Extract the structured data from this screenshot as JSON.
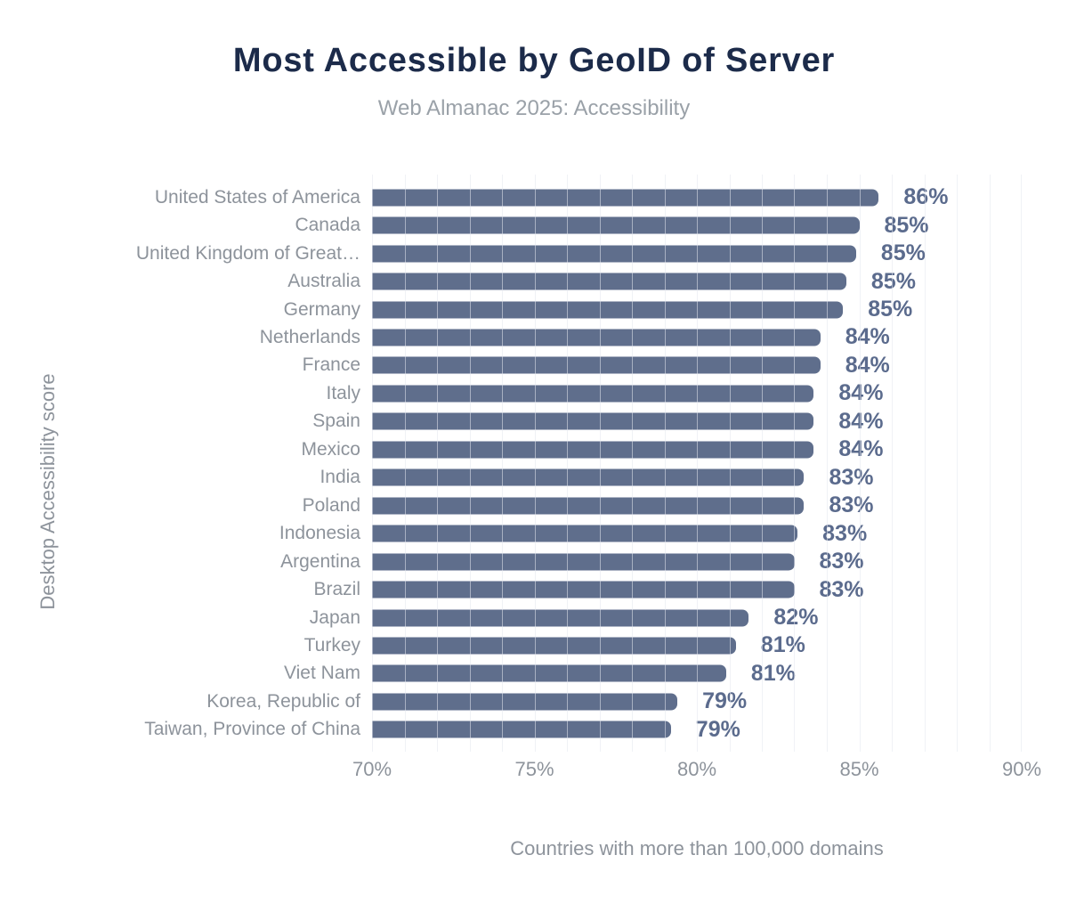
{
  "title": "Most Accessible by GeoID of Server",
  "subtitle": "Web Almanac 2025: Accessibility",
  "y_axis_label": "Desktop Accessibility score",
  "x_axis_caption": "Countries with more than 100,000 domains",
  "colors": {
    "background": "#ffffff",
    "title": "#1c2b4a",
    "subtitle": "#9aa1a8",
    "axis_text": "#8d939b",
    "bar": "#5f6e8c",
    "value_label": "#5b6b8d",
    "gridline": "rgba(228,232,238,0.55)"
  },
  "chart_data": {
    "type": "bar",
    "orientation": "horizontal",
    "title": "Most Accessible by GeoID of Server",
    "subtitle": "Web Almanac 2025: Accessibility",
    "ylabel": "Desktop Accessibility score",
    "xlabel": "Countries with more than 100,000 domains",
    "xlim": [
      70,
      90
    ],
    "grid": "vertical, every 1 percent",
    "legend": "none",
    "x_ticks": [
      {
        "value": 70,
        "label": "70%"
      },
      {
        "value": 75,
        "label": "75%"
      },
      {
        "value": 80,
        "label": "80%"
      },
      {
        "value": 85,
        "label": "85%"
      },
      {
        "value": 90,
        "label": "90%"
      }
    ],
    "categories": [
      "United States of America",
      "Canada",
      "United Kingdom of Great…",
      "Australia",
      "Germany",
      "Netherlands",
      "France",
      "Italy",
      "Spain",
      "Mexico",
      "India",
      "Poland",
      "Indonesia",
      "Argentina",
      "Brazil",
      "Japan",
      "Turkey",
      "Viet Nam",
      "Korea, Republic of",
      "Taiwan, Province of China"
    ],
    "values": [
      85.6,
      85.0,
      84.9,
      84.6,
      84.5,
      83.8,
      83.8,
      83.6,
      83.6,
      83.6,
      83.3,
      83.3,
      83.1,
      83.0,
      83.0,
      81.6,
      81.2,
      80.9,
      79.4,
      79.2
    ],
    "value_labels": [
      "86%",
      "85%",
      "85%",
      "85%",
      "85%",
      "84%",
      "84%",
      "84%",
      "84%",
      "84%",
      "83%",
      "83%",
      "83%",
      "83%",
      "83%",
      "82%",
      "81%",
      "81%",
      "79%",
      "79%"
    ]
  }
}
